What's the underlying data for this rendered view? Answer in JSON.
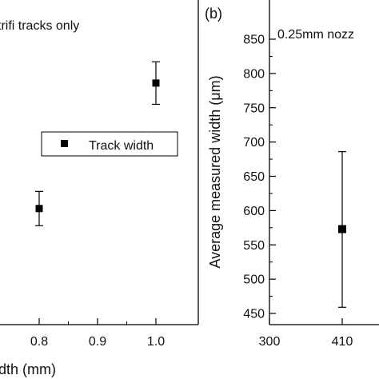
{
  "chart_data": [
    {
      "type": "scatter",
      "title": "trifi tracks only",
      "xlabel": "dth (mm)",
      "ylabel": "",
      "x_ticks": [
        "0.8",
        "0.9",
        "1.0"
      ],
      "legend": {
        "placement": "center-right",
        "label": "Track width",
        "marker": "square"
      },
      "series": [
        {
          "name": "Track width",
          "points": [
            {
              "x": 0.8,
              "y": 603,
              "y_low": 578,
              "y_high": 628
            },
            {
              "x": 1.0,
              "y": 786,
              "y_low": 755,
              "y_high": 817
            }
          ]
        }
      ],
      "xlim": [
        0.7,
        1.05
      ],
      "ylim": [
        435,
        862
      ],
      "grid": false
    },
    {
      "type": "scatter",
      "panel_label": "(b)",
      "title": "0.25mm nozz",
      "xlabel": "",
      "ylabel": "Average measured width (μm)",
      "x_ticks": [
        "300",
        "410"
      ],
      "y_ticks": [
        "450",
        "500",
        "550",
        "600",
        "650",
        "700",
        "750",
        "800",
        "850"
      ],
      "series": [
        {
          "points": [
            {
              "x": 410,
              "y": 573,
              "y_low": 459,
              "y_high": 686
            }
          ]
        }
      ],
      "xlim": [
        300,
        520
      ],
      "ylim": [
        435,
        862
      ],
      "grid": false
    }
  ]
}
